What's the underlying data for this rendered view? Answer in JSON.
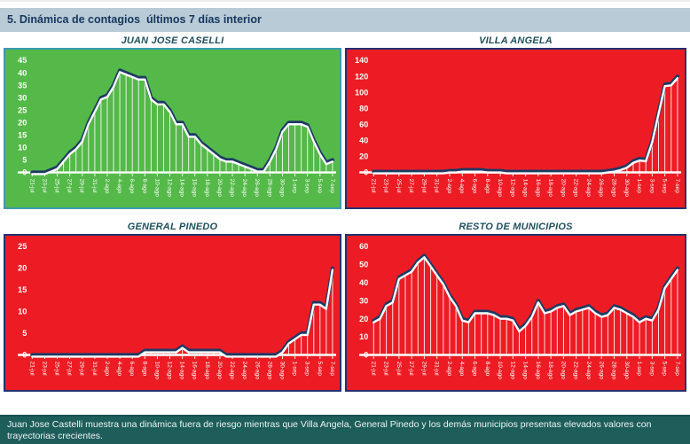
{
  "page": {
    "title": "5. Dinámica de contagios  últimos 7 días interior",
    "footer": "Juan Jose Castelli muestra una dinámica fuera de riesgo mientras que Villa Angela, General Pinedo y los demás municipios presentas elevados valores con trayectorias crecientes."
  },
  "colors": {
    "header_bg": "#b8cbd7",
    "header_text": "#17365d",
    "panel_title": "#1f5060",
    "green_bg": "#54b948",
    "green_border": "#3a9bb0",
    "red_bg": "#ed1c24",
    "red_border": "#24316e",
    "line_dark": "#1d3a63",
    "line_light": "#ffffff",
    "axis_text": "#ffffff",
    "footer_bg": "#1d5e5b",
    "footer_text": "#eef4f4"
  },
  "chart_data": [
    {
      "type": "line",
      "title": "JUAN JOSE CASELLI",
      "bg": "#54b948",
      "border_color": "#3a9bb0",
      "ylim": [
        0,
        45
      ],
      "ytick": 5,
      "grid": false,
      "legend": false,
      "x_label_every": 2,
      "x": [
        "21-jul",
        "22-jul",
        "23-jul",
        "24-jul",
        "25-jul",
        "26-jul",
        "27-jul",
        "28-jul",
        "29-jul",
        "30-jul",
        "31-jul",
        "1-ago",
        "2-ago",
        "3-ago",
        "4-ago",
        "5-ago",
        "6-ago",
        "7-ago",
        "8-ago",
        "9-ago",
        "10-ago",
        "11-ago",
        "12-ago",
        "13-ago",
        "14-ago",
        "15-ago",
        "16-ago",
        "17-ago",
        "18-ago",
        "19-ago",
        "20-ago",
        "21-ago",
        "22-ago",
        "23-ago",
        "24-ago",
        "25-ago",
        "26-ago",
        "27-ago",
        "28-ago",
        "29-ago",
        "30-ago",
        "31-ago",
        "1-sep",
        "2-sep",
        "3-sep",
        "4-sep",
        "5-sep",
        "6-sep",
        "7-sep"
      ],
      "values": [
        0,
        0,
        0,
        1,
        2,
        5,
        8,
        10,
        13,
        20,
        25,
        30,
        31,
        35,
        41,
        40,
        39,
        38,
        38,
        30,
        28,
        28,
        25,
        20,
        20,
        15,
        15,
        12,
        10,
        8,
        6,
        5,
        5,
        4,
        3,
        2,
        1,
        1,
        5,
        10,
        17,
        20,
        20,
        20,
        19,
        13,
        8,
        4,
        5
      ]
    },
    {
      "type": "line",
      "title": "VILLA ANGELA",
      "bg": "#ed1c24",
      "border_color": "#24316e",
      "ylim": [
        0,
        140
      ],
      "ytick": 20,
      "grid": false,
      "legend": false,
      "x_label_every": 2,
      "x": [
        "21-jul",
        "22-jul",
        "23-jul",
        "24-jul",
        "25-jul",
        "26-jul",
        "27-jul",
        "28-jul",
        "29-jul",
        "30-jul",
        "31-jul",
        "1-ago",
        "2-ago",
        "3-ago",
        "4-ago",
        "5-ago",
        "6-ago",
        "7-ago",
        "8-ago",
        "9-ago",
        "10-ago",
        "11-ago",
        "12-ago",
        "13-ago",
        "14-ago",
        "15-ago",
        "16-ago",
        "17-ago",
        "18-ago",
        "19-ago",
        "20-ago",
        "21-ago",
        "22-ago",
        "23-ago",
        "24-ago",
        "25-ago",
        "26-ago",
        "27-ago",
        "28-ago",
        "29-ago",
        "30-ago",
        "31-ago",
        "1-sep",
        "2-sep",
        "3-sep",
        "4-sep",
        "5-sep",
        "6-sep",
        "7-sep"
      ],
      "values": [
        1,
        1,
        1,
        1,
        1,
        1,
        1,
        1,
        1,
        1,
        1,
        1,
        2,
        2,
        3,
        3,
        3,
        3,
        2,
        2,
        2,
        1,
        1,
        1,
        1,
        1,
        1,
        1,
        1,
        1,
        1,
        1,
        1,
        1,
        1,
        1,
        1,
        2,
        3,
        5,
        8,
        14,
        17,
        16,
        40,
        75,
        110,
        111,
        120
      ]
    },
    {
      "type": "line",
      "title": "GENERAL PINEDO",
      "bg": "#ed1c24",
      "border_color": "#24316e",
      "ylim": [
        0,
        25
      ],
      "ytick": 5,
      "grid": false,
      "legend": false,
      "x_label_every": 2,
      "x": [
        "21-jul",
        "22-jul",
        "23-jul",
        "24-jul",
        "25-jul",
        "26-jul",
        "27-jul",
        "28-jul",
        "29-jul",
        "30-jul",
        "31-jul",
        "1-ago",
        "2-ago",
        "3-ago",
        "4-ago",
        "5-ago",
        "6-ago",
        "7-ago",
        "8-ago",
        "9-ago",
        "10-ago",
        "11-ago",
        "12-ago",
        "13-ago",
        "14-ago",
        "15-ago",
        "16-ago",
        "17-ago",
        "18-ago",
        "19-ago",
        "20-ago",
        "21-ago",
        "22-ago",
        "23-ago",
        "24-ago",
        "25-ago",
        "26-ago",
        "27-ago",
        "28-ago",
        "29-ago",
        "30-ago",
        "31-ago",
        "1-sep",
        "2-sep",
        "3-sep",
        "4-sep",
        "5-sep",
        "6-sep",
        "7-sep"
      ],
      "values": [
        0,
        0,
        0,
        0,
        0,
        0,
        0,
        0,
        0,
        0,
        0,
        0,
        0,
        0,
        0,
        0,
        0,
        0,
        1,
        1,
        1,
        1,
        1,
        1,
        2,
        1,
        1,
        1,
        1,
        1,
        1,
        0,
        0,
        0,
        0,
        0,
        0,
        0,
        0,
        0,
        1,
        3,
        4,
        5,
        5,
        12,
        12,
        11,
        20
      ]
    },
    {
      "type": "line",
      "title": "RESTO DE MUNICIPIOS",
      "bg": "#ed1c24",
      "border_color": "#24316e",
      "ylim": [
        0,
        60
      ],
      "ytick": 10,
      "grid": false,
      "legend": false,
      "x_label_every": 2,
      "x": [
        "21-jul",
        "22-jul",
        "23-jul",
        "24-jul",
        "25-jul",
        "26-jul",
        "27-jul",
        "28-jul",
        "29-jul",
        "30-jul",
        "31-jul",
        "1-ago",
        "2-ago",
        "3-ago",
        "4-ago",
        "5-ago",
        "6-ago",
        "7-ago",
        "8-ago",
        "9-ago",
        "10-ago",
        "11-ago",
        "12-ago",
        "13-ago",
        "14-ago",
        "15-ago",
        "16-ago",
        "17-ago",
        "18-ago",
        "19-ago",
        "20-ago",
        "21-ago",
        "22-ago",
        "23-ago",
        "24-ago",
        "25-ago",
        "26-ago",
        "27-ago",
        "28-ago",
        "29-ago",
        "30-ago",
        "31-ago",
        "1-sep",
        "2-sep",
        "3-sep",
        "4-sep",
        "5-sep",
        "6-sep",
        "7-sep"
      ],
      "values": [
        19,
        21,
        28,
        30,
        43,
        45,
        47,
        52,
        55,
        50,
        45,
        40,
        33,
        28,
        20,
        19,
        24,
        24,
        24,
        23,
        21,
        21,
        20,
        14,
        17,
        22,
        30,
        24,
        25,
        27,
        28,
        23,
        25,
        26,
        27,
        24,
        22,
        23,
        27,
        26,
        24,
        22,
        19,
        21,
        20,
        26,
        38,
        43,
        48
      ]
    }
  ]
}
